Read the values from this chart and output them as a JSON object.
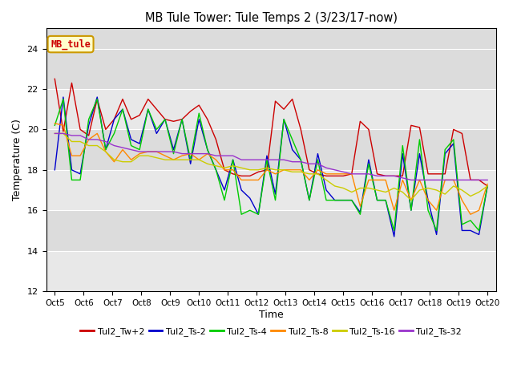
{
  "title": "MB Tule Tower: Tule Temps 2 (3/23/17-now)",
  "xlabel": "Time",
  "ylabel": "Temperature (C)",
  "fig_facecolor": "#ffffff",
  "plot_bg_color": "#dcdcdc",
  "ylim": [
    12,
    25
  ],
  "yticks": [
    12,
    14,
    16,
    18,
    20,
    22,
    24
  ],
  "xtick_labels": [
    "Oct 5",
    "Oct 6",
    "Oct 7",
    "Oct 8",
    "Oct 9",
    "Oct 10",
    "Oct 11",
    "Oct 12",
    "Oct 13",
    "Oct 14",
    "Oct 15",
    "Oct 16",
    "Oct 17",
    "Oct 18",
    "Oct 19",
    "Oct 20"
  ],
  "legend_labels": [
    "Tul2_Tw+2",
    "Tul2_Ts-2",
    "Tul2_Ts-4",
    "Tul2_Ts-8",
    "Tul2_Ts-16",
    "Tul2_Ts-32"
  ],
  "line_colors": [
    "#cc0000",
    "#0000cc",
    "#00cc00",
    "#ff8800",
    "#cccc00",
    "#9933cc"
  ],
  "annotation_text": "MB_tule",
  "annotation_bg": "#ffffcc",
  "annotation_border": "#cc9900",
  "annotation_text_color": "#cc0000",
  "series": {
    "Tw2": [
      22.5,
      19.9,
      22.3,
      20.0,
      19.7,
      21.5,
      20.0,
      20.5,
      21.5,
      20.5,
      20.7,
      21.5,
      21.0,
      20.5,
      20.4,
      20.5,
      20.9,
      21.2,
      20.5,
      19.5,
      18.0,
      17.8,
      17.7,
      17.7,
      17.9,
      18.0,
      21.4,
      21.0,
      21.5,
      20.0,
      18.0,
      17.8,
      17.7,
      17.7,
      17.7,
      17.8,
      20.4,
      20.0,
      17.8,
      17.7,
      17.7,
      17.7,
      20.2,
      20.1,
      17.8,
      17.8,
      17.8,
      20.0,
      19.8,
      17.5,
      17.5,
      17.2
    ],
    "Ts2": [
      18.0,
      21.6,
      18.0,
      17.8,
      20.2,
      21.6,
      19.0,
      20.5,
      21.0,
      19.5,
      19.3,
      21.0,
      19.8,
      20.5,
      19.0,
      20.5,
      18.3,
      20.5,
      19.0,
      18.0,
      17.0,
      18.5,
      17.0,
      16.6,
      15.8,
      18.7,
      16.8,
      20.5,
      19.0,
      18.5,
      16.5,
      18.8,
      17.0,
      16.5,
      16.5,
      16.5,
      15.9,
      18.5,
      16.5,
      16.5,
      14.7,
      18.8,
      16.0,
      18.8,
      16.5,
      14.8,
      18.8,
      19.3,
      15.0,
      15.0,
      14.8,
      17.2
    ],
    "Ts4": [
      20.2,
      21.5,
      17.5,
      17.5,
      20.5,
      21.5,
      19.0,
      19.8,
      21.0,
      19.2,
      19.0,
      21.0,
      20.0,
      20.5,
      18.8,
      20.5,
      18.5,
      20.8,
      19.0,
      18.0,
      16.5,
      18.5,
      15.8,
      16.0,
      15.8,
      18.5,
      16.5,
      20.5,
      19.5,
      18.5,
      16.5,
      18.5,
      16.5,
      16.5,
      16.5,
      16.5,
      15.8,
      18.3,
      16.5,
      16.5,
      15.0,
      19.2,
      16.0,
      19.5,
      16.0,
      15.0,
      19.0,
      19.5,
      15.3,
      15.5,
      15.0,
      17.2
    ],
    "Ts8": [
      20.3,
      20.2,
      18.7,
      18.7,
      19.5,
      19.8,
      18.9,
      18.4,
      19.0,
      18.5,
      18.8,
      18.9,
      18.9,
      18.7,
      18.5,
      18.7,
      18.8,
      18.5,
      18.8,
      18.5,
      18.0,
      18.0,
      17.5,
      17.5,
      17.5,
      18.0,
      17.8,
      18.0,
      18.0,
      18.0,
      17.5,
      18.0,
      17.8,
      17.8,
      17.8,
      17.8,
      16.2,
      17.5,
      17.5,
      17.5,
      16.0,
      17.5,
      16.5,
      17.5,
      16.5,
      16.0,
      17.5,
      17.5,
      16.5,
      15.8,
      16.0,
      17.3
    ],
    "Ts16": [
      19.8,
      19.8,
      19.4,
      19.4,
      19.2,
      19.2,
      18.9,
      18.5,
      18.4,
      18.4,
      18.7,
      18.7,
      18.6,
      18.5,
      18.5,
      18.5,
      18.5,
      18.5,
      18.3,
      18.2,
      18.1,
      18.2,
      18.1,
      18.0,
      18.0,
      18.1,
      18.0,
      18.0,
      17.9,
      17.9,
      17.8,
      17.8,
      17.5,
      17.2,
      17.1,
      16.9,
      17.1,
      17.1,
      17.0,
      16.9,
      17.1,
      16.9,
      16.5,
      17.0,
      17.1,
      17.0,
      16.8,
      17.2,
      17.0,
      16.7,
      16.9,
      17.2
    ],
    "Ts32": [
      19.8,
      19.8,
      19.7,
      19.7,
      19.5,
      19.5,
      19.4,
      19.2,
      19.1,
      19.0,
      18.9,
      18.9,
      18.9,
      18.9,
      18.9,
      18.8,
      18.8,
      18.8,
      18.8,
      18.7,
      18.7,
      18.7,
      18.5,
      18.5,
      18.5,
      18.5,
      18.5,
      18.5,
      18.4,
      18.4,
      18.3,
      18.3,
      18.1,
      18.0,
      17.9,
      17.8,
      17.8,
      17.8,
      17.7,
      17.7,
      17.7,
      17.6,
      17.5,
      17.5,
      17.5,
      17.5,
      17.5,
      17.5,
      17.5,
      17.5,
      17.5,
      17.5
    ]
  }
}
